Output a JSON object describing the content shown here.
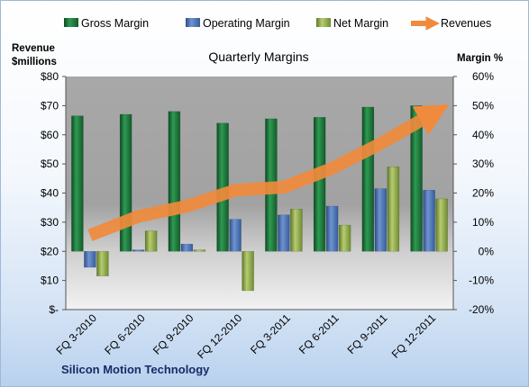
{
  "chart_data": {
    "type": "bar",
    "title": "Quarterly Margins",
    "categories": [
      "FQ 3-2010",
      "FQ 6-2010",
      "FQ 9-2010",
      "FQ 12-2010",
      "FQ 3-2011",
      "FQ 6-2011",
      "FQ 9-2011",
      "FQ 12-2011"
    ],
    "series": [
      {
        "name": "Gross Margin",
        "axis": "right",
        "type": "bar",
        "color": "#1e7a3c",
        "values": [
          46.5,
          47,
          48,
          44,
          45.5,
          46,
          49.5,
          50
        ]
      },
      {
        "name": "Operating Margin",
        "axis": "right",
        "type": "bar",
        "color": "#4a73b4",
        "values": [
          -5.5,
          0.5,
          2.5,
          11,
          12.5,
          15.5,
          21.5,
          21
        ]
      },
      {
        "name": "Net Margin",
        "axis": "right",
        "type": "bar",
        "color": "#8fa84a",
        "values": [
          -8.5,
          7,
          0.5,
          -13.5,
          14.5,
          9,
          29,
          18
        ]
      },
      {
        "name": "Revenues",
        "axis": "left",
        "type": "line",
        "color": "#f08a3c",
        "values": [
          25.5,
          32,
          35.5,
          41,
          42,
          48.5,
          57,
          66.5
        ]
      }
    ],
    "left_axis": {
      "label_line1": "Revenue",
      "label_line2": "$millions",
      "ylim": [
        0,
        80
      ],
      "ticks": [
        0,
        10,
        20,
        30,
        40,
        50,
        60,
        70,
        80
      ],
      "tick_labels": [
        "$-",
        "$10",
        "$20",
        "$30",
        "$40",
        "$50",
        "$60",
        "$70",
        "$80"
      ]
    },
    "right_axis": {
      "label": "Margin %",
      "ylim": [
        -20,
        60
      ],
      "ticks": [
        -20,
        -10,
        0,
        10,
        20,
        30,
        40,
        50,
        60
      ],
      "tick_labels": [
        "-20%",
        "-10%",
        "0%",
        "10%",
        "20%",
        "30%",
        "40%",
        "50%",
        "60%"
      ]
    },
    "grid": false,
    "legend_position": "top",
    "source_label": "Silicon Motion Technology"
  }
}
